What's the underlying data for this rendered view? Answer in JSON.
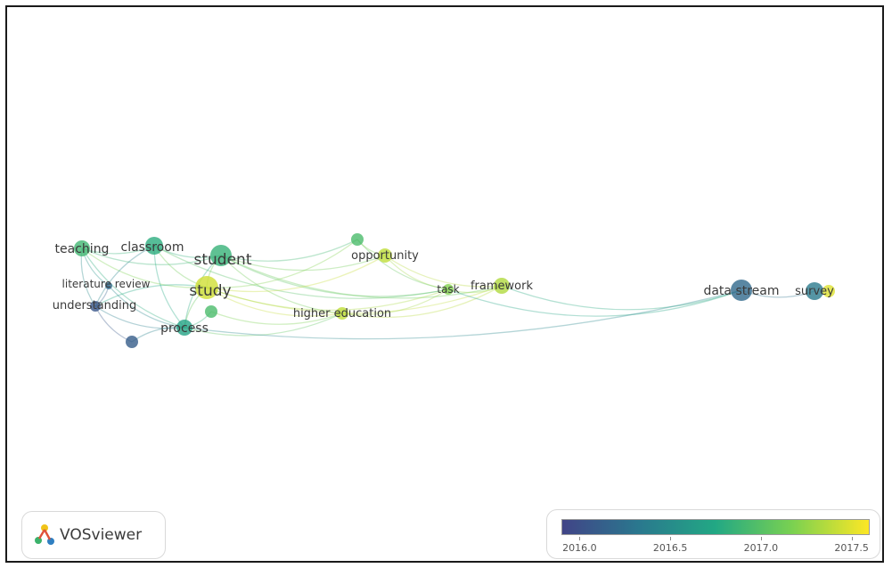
{
  "network": {
    "nodes": [
      {
        "id": "teaching",
        "label": "teaching",
        "year": 2016.9
      },
      {
        "id": "classroom",
        "label": "classroom",
        "year": 2016.8
      },
      {
        "id": "student",
        "label": "student",
        "year": 2016.85
      },
      {
        "id": "literature-review",
        "label": "literature review",
        "year": 2016.2
      },
      {
        "id": "study",
        "label": "study",
        "year": 2017.45
      },
      {
        "id": "understanding",
        "label": "understanding",
        "year": 2016.05
      },
      {
        "id": "process",
        "label": "process",
        "year": 2016.7
      },
      {
        "id": "green-node",
        "label": "",
        "year": 2016.95
      },
      {
        "id": "purple-node",
        "label": "",
        "year": 2016.1
      },
      {
        "id": "top-node",
        "label": "",
        "year": 2016.95
      },
      {
        "id": "opportunity",
        "label": "opportunity",
        "year": 2017.4
      },
      {
        "id": "higher-education",
        "label": "higher education",
        "year": 2017.4
      },
      {
        "id": "task",
        "label": "task",
        "year": 2017.2
      },
      {
        "id": "framework",
        "label": "framework",
        "year": 2017.35
      },
      {
        "id": "data-stream",
        "label": "data stream",
        "year": 2016.2
      },
      {
        "id": "survey",
        "label": "survey",
        "year": 2016.35
      },
      {
        "id": "survey-yellow",
        "label": "",
        "year": 2017.5
      }
    ],
    "links": [
      [
        "teaching",
        "classroom"
      ],
      [
        "teaching",
        "student"
      ],
      [
        "teaching",
        "understanding"
      ],
      [
        "teaching",
        "process"
      ],
      [
        "teaching",
        "literature-review"
      ],
      [
        "teaching",
        "study"
      ],
      [
        "classroom",
        "student"
      ],
      [
        "classroom",
        "study"
      ],
      [
        "classroom",
        "process"
      ],
      [
        "classroom",
        "understanding"
      ],
      [
        "classroom",
        "task"
      ],
      [
        "student",
        "study"
      ],
      [
        "student",
        "opportunity"
      ],
      [
        "student",
        "task"
      ],
      [
        "student",
        "framework"
      ],
      [
        "student",
        "higher-education"
      ],
      [
        "student",
        "top-node"
      ],
      [
        "student",
        "process"
      ],
      [
        "study",
        "opportunity"
      ],
      [
        "study",
        "higher-education"
      ],
      [
        "study",
        "framework"
      ],
      [
        "study",
        "task"
      ],
      [
        "study",
        "process"
      ],
      [
        "study",
        "understanding"
      ],
      [
        "study",
        "top-node"
      ],
      [
        "understanding",
        "process"
      ],
      [
        "understanding",
        "literature-review"
      ],
      [
        "understanding",
        "purple-node"
      ],
      [
        "literature-review",
        "process"
      ],
      [
        "process",
        "higher-education"
      ],
      [
        "process",
        "purple-node"
      ],
      [
        "process",
        "green-node"
      ],
      [
        "green-node",
        "higher-education"
      ],
      [
        "higher-education",
        "framework"
      ],
      [
        "higher-education",
        "task"
      ],
      [
        "opportunity",
        "task"
      ],
      [
        "opportunity",
        "framework"
      ],
      [
        "top-node",
        "task"
      ],
      [
        "top-node",
        "opportunity"
      ],
      [
        "task",
        "framework"
      ],
      [
        "task",
        "data-stream"
      ],
      [
        "framework",
        "data-stream"
      ],
      [
        "process",
        "data-stream"
      ],
      [
        "data-stream",
        "survey"
      ]
    ]
  },
  "logo": {
    "text": "VOSviewer"
  },
  "color_scale": {
    "min": 2015.9,
    "max": 2017.6,
    "ticks": [
      "2016.0",
      "2016.5",
      "2017.0",
      "2017.5"
    ],
    "colors": {
      "low": "#414487",
      "midlow": "#2a788e",
      "mid": "#22a884",
      "midhigh": "#7ad151",
      "high": "#fde725"
    }
  }
}
